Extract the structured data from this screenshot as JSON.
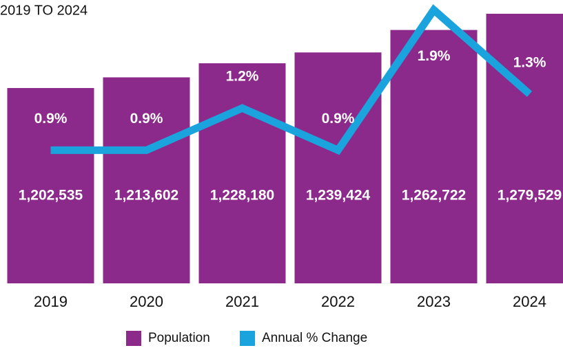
{
  "chart_data": {
    "type": "bar",
    "title": "2019 TO 2024",
    "categories": [
      "2019",
      "2020",
      "2021",
      "2022",
      "2023",
      "2024"
    ],
    "ylim": [
      1000000,
      1300000
    ],
    "y2lim": [
      0,
      2
    ],
    "series": [
      {
        "name": "Population",
        "type": "bar",
        "color": "#8c2a8c",
        "values": [
          1202535,
          1213602,
          1228180,
          1239424,
          1262722,
          1279529
        ],
        "value_labels": [
          "1,202,535",
          "1,213,602",
          "1,228,180",
          "1,239,424",
          "1,262,722",
          "1,279,529"
        ]
      },
      {
        "name": "Annual % Change",
        "type": "line",
        "axis": "y2",
        "color": "#1aa3dc",
        "values": [
          0.9,
          0.9,
          1.2,
          0.9,
          1.9,
          1.3
        ],
        "value_labels": [
          "0.9%",
          "0.9%",
          "1.2%",
          "0.9%",
          "1.9%",
          "1.3%"
        ]
      }
    ],
    "legend": "bottom"
  }
}
